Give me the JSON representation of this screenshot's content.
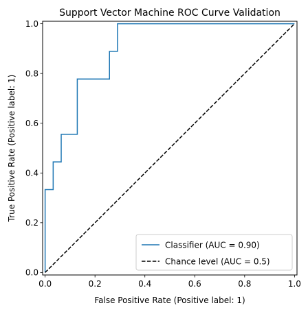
{
  "chart_data": {
    "type": "line",
    "title": "Support Vector Machine ROC Curve Validation",
    "xlabel": "False Positive Rate (Positive label: 1)",
    "ylabel": "True Positive Rate (Positive label: 1)",
    "xlim": [
      -0.01,
      1.01
    ],
    "ylim": [
      -0.01,
      1.01
    ],
    "xticks": [
      "0.0",
      "0.2",
      "0.4",
      "0.6",
      "0.8",
      "1.0"
    ],
    "yticks": [
      "0.0",
      "0.2",
      "0.4",
      "0.6",
      "0.8",
      "1.0"
    ],
    "grid": false,
    "legend_position": "lower-right",
    "series": [
      {
        "name": "Classifier (AUC = 0.90)",
        "color": "#1f77b4",
        "style": "solid",
        "x": [
          0.0,
          0.0,
          0.0,
          0.0323,
          0.0323,
          0.0645,
          0.0645,
          0.129,
          0.129,
          0.2581,
          0.2581,
          0.2903,
          0.2903,
          1.0
        ],
        "y": [
          0.0,
          0.1111,
          0.3333,
          0.3333,
          0.4444,
          0.4444,
          0.5556,
          0.5556,
          0.7778,
          0.7778,
          0.8889,
          0.8889,
          1.0,
          1.0
        ]
      },
      {
        "name": "Chance level (AUC = 0.5)",
        "color": "#000000",
        "style": "dashed",
        "x": [
          0.0,
          1.0
        ],
        "y": [
          0.0,
          1.0
        ]
      }
    ]
  }
}
